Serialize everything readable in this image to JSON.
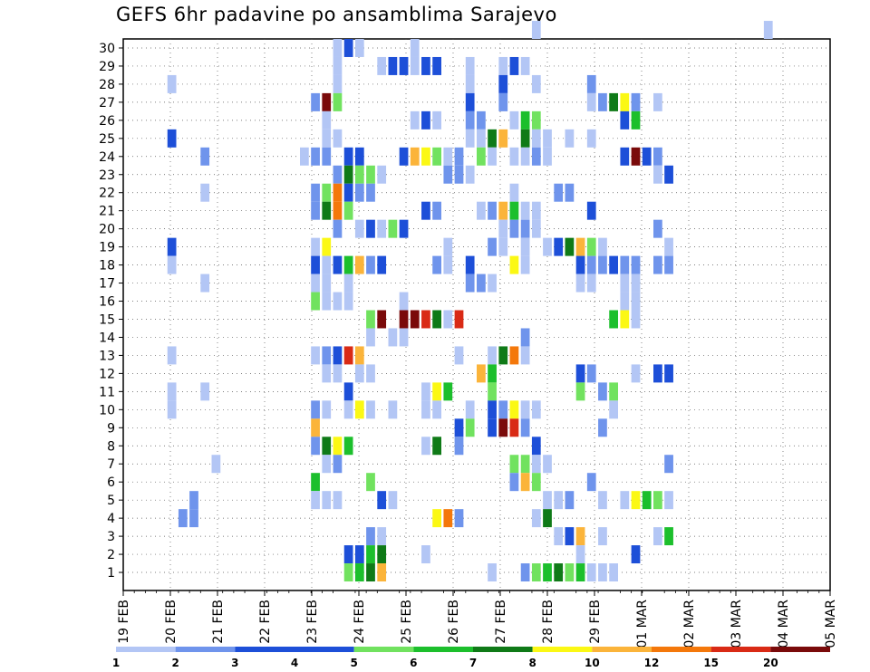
{
  "chart_data": {
    "type": "heatmap",
    "title": "GEFS 6hr padavine po ansamblima Sarajevo",
    "xlabel": "",
    "ylabel": "",
    "x_tick_labels": [
      "19 FEB",
      "20 FEB",
      "21 FEB",
      "22 FEB",
      "23 FEB",
      "24 FEB",
      "25 FEB",
      "26 FEB",
      "27 FEB",
      "28 FEB",
      "29 FEB",
      "01 MAR",
      "02 MAR",
      "03 MAR",
      "04 MAR",
      "05 MAR"
    ],
    "y_tick_labels": [
      "1",
      "2",
      "3",
      "4",
      "5",
      "6",
      "7",
      "8",
      "9",
      "10",
      "11",
      "12",
      "13",
      "14",
      "15",
      "16",
      "17",
      "18",
      "19",
      "20",
      "21",
      "22",
      "23",
      "24",
      "25",
      "26",
      "27",
      "28",
      "29",
      "30"
    ],
    "x_range_steps": [
      0,
      64
    ],
    "steps_per_day": 4,
    "grid": true,
    "legend_placement": "bottom",
    "colorbar": {
      "thresholds": [
        "1",
        "2",
        "3",
        "4",
        "5",
        "6",
        "7",
        "8",
        "10",
        "12",
        "15",
        "20"
      ],
      "colors": [
        "#b3c6f5",
        "#6f94ec",
        "#1d4fd8",
        "#1d4fd8",
        "#71e25f",
        "#1cbf2c",
        "#0f7a17",
        "#fbf814",
        "#fbb43a",
        "#f4780b",
        "#d92a15",
        "#7a0a0a"
      ]
    },
    "cells": [
      [
        30,
        37,
        0
      ],
      [
        30,
        58,
        0
      ],
      [
        29,
        19,
        0
      ],
      [
        29,
        20,
        2
      ],
      [
        29,
        21,
        0
      ],
      [
        29,
        26,
        0
      ],
      [
        28,
        19,
        0
      ],
      [
        28,
        23,
        0
      ],
      [
        28,
        24,
        2
      ],
      [
        28,
        25,
        2
      ],
      [
        28,
        26,
        0
      ],
      [
        28,
        27,
        2
      ],
      [
        28,
        28,
        2
      ],
      [
        28,
        31,
        0
      ],
      [
        28,
        34,
        0
      ],
      [
        28,
        35,
        2
      ],
      [
        28,
        36,
        0
      ],
      [
        27,
        4,
        0
      ],
      [
        27,
        19,
        0
      ],
      [
        27,
        31,
        0
      ],
      [
        27,
        34,
        2
      ],
      [
        27,
        37,
        0
      ],
      [
        27,
        42,
        1
      ],
      [
        26,
        17,
        1
      ],
      [
        26,
        18,
        11
      ],
      [
        26,
        19,
        4
      ],
      [
        26,
        31,
        2
      ],
      [
        26,
        34,
        1
      ],
      [
        26,
        42,
        0
      ],
      [
        26,
        43,
        1
      ],
      [
        26,
        44,
        6
      ],
      [
        26,
        45,
        7
      ],
      [
        26,
        46,
        1
      ],
      [
        26,
        48,
        0
      ],
      [
        25,
        18,
        0
      ],
      [
        25,
        26,
        0
      ],
      [
        25,
        27,
        2
      ],
      [
        25,
        28,
        0
      ],
      [
        25,
        31,
        1
      ],
      [
        25,
        32,
        1
      ],
      [
        25,
        35,
        0
      ],
      [
        25,
        36,
        5
      ],
      [
        25,
        37,
        4
      ],
      [
        25,
        45,
        2
      ],
      [
        25,
        46,
        5
      ],
      [
        24,
        4,
        2
      ],
      [
        24,
        18,
        0
      ],
      [
        24,
        19,
        0
      ],
      [
        24,
        31,
        0
      ],
      [
        24,
        32,
        0
      ],
      [
        24,
        33,
        6
      ],
      [
        24,
        34,
        8
      ],
      [
        24,
        36,
        6
      ],
      [
        24,
        37,
        0
      ],
      [
        24,
        38,
        0
      ],
      [
        24,
        40,
        0
      ],
      [
        24,
        42,
        0
      ],
      [
        23,
        7,
        1
      ],
      [
        23,
        16,
        0
      ],
      [
        23,
        17,
        1
      ],
      [
        23,
        18,
        1
      ],
      [
        23,
        20,
        2
      ],
      [
        23,
        21,
        2
      ],
      [
        23,
        25,
        2
      ],
      [
        23,
        26,
        8
      ],
      [
        23,
        27,
        7
      ],
      [
        23,
        28,
        4
      ],
      [
        23,
        29,
        0
      ],
      [
        23,
        30,
        1
      ],
      [
        23,
        32,
        4
      ],
      [
        23,
        33,
        0
      ],
      [
        23,
        35,
        0
      ],
      [
        23,
        36,
        0
      ],
      [
        23,
        37,
        1
      ],
      [
        23,
        38,
        0
      ],
      [
        23,
        45,
        2
      ],
      [
        23,
        46,
        11
      ],
      [
        23,
        47,
        2
      ],
      [
        23,
        48,
        1
      ],
      [
        22,
        19,
        1
      ],
      [
        22,
        20,
        6
      ],
      [
        22,
        21,
        4
      ],
      [
        22,
        22,
        4
      ],
      [
        22,
        23,
        0
      ],
      [
        22,
        29,
        1
      ],
      [
        22,
        30,
        1
      ],
      [
        22,
        31,
        0
      ],
      [
        22,
        48,
        0
      ],
      [
        22,
        49,
        2
      ],
      [
        21,
        7,
        0
      ],
      [
        21,
        17,
        1
      ],
      [
        21,
        18,
        4
      ],
      [
        21,
        19,
        9
      ],
      [
        21,
        20,
        2
      ],
      [
        21,
        21,
        1
      ],
      [
        21,
        22,
        1
      ],
      [
        21,
        35,
        0
      ],
      [
        21,
        39,
        1
      ],
      [
        21,
        40,
        1
      ],
      [
        20,
        17,
        1
      ],
      [
        20,
        18,
        6
      ],
      [
        20,
        19,
        9
      ],
      [
        20,
        20,
        4
      ],
      [
        20,
        27,
        2
      ],
      [
        20,
        28,
        1
      ],
      [
        20,
        32,
        0
      ],
      [
        20,
        33,
        1
      ],
      [
        20,
        34,
        8
      ],
      [
        20,
        35,
        5
      ],
      [
        20,
        36,
        0
      ],
      [
        20,
        37,
        0
      ],
      [
        20,
        42,
        2
      ],
      [
        19,
        19,
        1
      ],
      [
        19,
        21,
        0
      ],
      [
        19,
        22,
        2
      ],
      [
        19,
        23,
        0
      ],
      [
        19,
        24,
        4
      ],
      [
        19,
        25,
        2
      ],
      [
        19,
        34,
        0
      ],
      [
        19,
        35,
        1
      ],
      [
        19,
        36,
        1
      ],
      [
        19,
        37,
        0
      ],
      [
        19,
        48,
        1
      ],
      [
        18,
        4,
        2
      ],
      [
        18,
        17,
        0
      ],
      [
        18,
        18,
        7
      ],
      [
        18,
        29,
        0
      ],
      [
        18,
        33,
        1
      ],
      [
        18,
        34,
        0
      ],
      [
        18,
        36,
        0
      ],
      [
        18,
        38,
        0
      ],
      [
        18,
        39,
        2
      ],
      [
        18,
        40,
        6
      ],
      [
        18,
        41,
        8
      ],
      [
        18,
        42,
        4
      ],
      [
        18,
        43,
        0
      ],
      [
        18,
        49,
        0
      ],
      [
        17,
        4,
        0
      ],
      [
        17,
        17,
        2
      ],
      [
        17,
        18,
        0
      ],
      [
        17,
        19,
        2
      ],
      [
        17,
        20,
        5
      ],
      [
        17,
        21,
        8
      ],
      [
        17,
        22,
        1
      ],
      [
        17,
        23,
        2
      ],
      [
        17,
        28,
        1
      ],
      [
        17,
        29,
        0
      ],
      [
        17,
        31,
        2
      ],
      [
        17,
        35,
        7
      ],
      [
        17,
        36,
        0
      ],
      [
        17,
        41,
        2
      ],
      [
        17,
        42,
        1
      ],
      [
        17,
        43,
        1
      ],
      [
        17,
        44,
        2
      ],
      [
        17,
        45,
        1
      ],
      [
        17,
        46,
        1
      ],
      [
        17,
        48,
        1
      ],
      [
        17,
        49,
        1
      ],
      [
        16,
        7,
        0
      ],
      [
        16,
        17,
        0
      ],
      [
        16,
        18,
        0
      ],
      [
        16,
        20,
        0
      ],
      [
        16,
        31,
        1
      ],
      [
        16,
        32,
        1
      ],
      [
        16,
        33,
        0
      ],
      [
        16,
        41,
        0
      ],
      [
        16,
        42,
        0
      ],
      [
        16,
        45,
        0
      ],
      [
        16,
        46,
        0
      ],
      [
        15,
        17,
        4
      ],
      [
        15,
        18,
        0
      ],
      [
        15,
        19,
        0
      ],
      [
        15,
        20,
        0
      ],
      [
        15,
        25,
        0
      ],
      [
        15,
        45,
        0
      ],
      [
        15,
        46,
        0
      ],
      [
        14,
        22,
        4
      ],
      [
        14,
        23,
        11
      ],
      [
        14,
        25,
        11
      ],
      [
        14,
        26,
        11
      ],
      [
        14,
        27,
        10
      ],
      [
        14,
        28,
        6
      ],
      [
        14,
        29,
        0
      ],
      [
        14,
        30,
        10
      ],
      [
        14,
        44,
        5
      ],
      [
        14,
        45,
        7
      ],
      [
        14,
        46,
        0
      ],
      [
        13,
        22,
        0
      ],
      [
        13,
        24,
        0
      ],
      [
        13,
        25,
        0
      ],
      [
        13,
        36,
        1
      ],
      [
        12,
        4,
        0
      ],
      [
        12,
        17,
        0
      ],
      [
        12,
        18,
        1
      ],
      [
        12,
        19,
        2
      ],
      [
        12,
        20,
        10
      ],
      [
        12,
        21,
        8
      ],
      [
        12,
        30,
        0
      ],
      [
        12,
        33,
        0
      ],
      [
        12,
        34,
        6
      ],
      [
        12,
        35,
        9
      ],
      [
        12,
        36,
        0
      ],
      [
        11,
        18,
        0
      ],
      [
        11,
        19,
        0
      ],
      [
        11,
        21,
        0
      ],
      [
        11,
        22,
        0
      ],
      [
        11,
        32,
        8
      ],
      [
        11,
        33,
        5
      ],
      [
        11,
        41,
        2
      ],
      [
        11,
        42,
        1
      ],
      [
        11,
        46,
        0
      ],
      [
        11,
        48,
        2
      ],
      [
        11,
        49,
        2
      ],
      [
        10,
        4,
        0
      ],
      [
        10,
        7,
        0
      ],
      [
        10,
        20,
        2
      ],
      [
        10,
        27,
        0
      ],
      [
        10,
        28,
        7
      ],
      [
        10,
        29,
        5
      ],
      [
        10,
        33,
        4
      ],
      [
        10,
        41,
        4
      ],
      [
        10,
        43,
        1
      ],
      [
        10,
        44,
        4
      ],
      [
        9,
        4,
        0
      ],
      [
        9,
        17,
        1
      ],
      [
        9,
        18,
        0
      ],
      [
        9,
        20,
        0
      ],
      [
        9,
        21,
        7
      ],
      [
        9,
        22,
        0
      ],
      [
        9,
        24,
        0
      ],
      [
        9,
        27,
        0
      ],
      [
        9,
        28,
        0
      ],
      [
        9,
        31,
        0
      ],
      [
        9,
        33,
        2
      ],
      [
        9,
        34,
        1
      ],
      [
        9,
        35,
        7
      ],
      [
        9,
        36,
        0
      ],
      [
        9,
        37,
        0
      ],
      [
        9,
        44,
        0
      ],
      [
        8,
        17,
        8
      ],
      [
        8,
        30,
        2
      ],
      [
        8,
        31,
        4
      ],
      [
        8,
        33,
        2
      ],
      [
        8,
        34,
        11
      ],
      [
        8,
        35,
        10
      ],
      [
        8,
        36,
        1
      ],
      [
        8,
        43,
        1
      ],
      [
        7,
        17,
        1
      ],
      [
        7,
        18,
        6
      ],
      [
        7,
        19,
        7
      ],
      [
        7,
        20,
        5
      ],
      [
        7,
        27,
        0
      ],
      [
        7,
        28,
        6
      ],
      [
        7,
        30,
        1
      ],
      [
        7,
        37,
        2
      ],
      [
        6,
        8,
        0
      ],
      [
        6,
        18,
        0
      ],
      [
        6,
        19,
        1
      ],
      [
        6,
        35,
        4
      ],
      [
        6,
        36,
        4
      ],
      [
        6,
        37,
        0
      ],
      [
        6,
        38,
        0
      ],
      [
        6,
        49,
        1
      ],
      [
        5,
        17,
        5
      ],
      [
        5,
        22,
        4
      ],
      [
        5,
        35,
        1
      ],
      [
        5,
        36,
        8
      ],
      [
        5,
        37,
        4
      ],
      [
        5,
        42,
        1
      ],
      [
        4,
        6,
        1
      ],
      [
        4,
        17,
        0
      ],
      [
        4,
        18,
        0
      ],
      [
        4,
        19,
        0
      ],
      [
        4,
        23,
        2
      ],
      [
        4,
        24,
        0
      ],
      [
        4,
        38,
        0
      ],
      [
        4,
        39,
        0
      ],
      [
        4,
        40,
        1
      ],
      [
        4,
        43,
        0
      ],
      [
        4,
        45,
        0
      ],
      [
        4,
        46,
        7
      ],
      [
        4,
        47,
        5
      ],
      [
        4,
        48,
        4
      ],
      [
        4,
        49,
        0
      ],
      [
        3,
        5,
        1
      ],
      [
        3,
        6,
        1
      ],
      [
        3,
        28,
        7
      ],
      [
        3,
        29,
        9
      ],
      [
        3,
        30,
        1
      ],
      [
        3,
        37,
        0
      ],
      [
        3,
        38,
        6
      ],
      [
        2,
        22,
        1
      ],
      [
        2,
        23,
        0
      ],
      [
        2,
        39,
        0
      ],
      [
        2,
        40,
        2
      ],
      [
        2,
        41,
        8
      ],
      [
        2,
        43,
        0
      ],
      [
        2,
        48,
        0
      ],
      [
        2,
        49,
        5
      ],
      [
        1,
        20,
        2
      ],
      [
        1,
        21,
        2
      ],
      [
        1,
        22,
        5
      ],
      [
        1,
        23,
        6
      ],
      [
        1,
        27,
        0
      ],
      [
        1,
        41,
        0
      ],
      [
        1,
        46,
        2
      ],
      [
        0,
        20,
        4
      ],
      [
        0,
        21,
        5
      ],
      [
        0,
        22,
        6
      ],
      [
        0,
        23,
        8
      ],
      [
        0,
        33,
        0
      ],
      [
        0,
        36,
        1
      ],
      [
        0,
        37,
        4
      ],
      [
        0,
        38,
        5
      ],
      [
        0,
        39,
        6
      ],
      [
        0,
        40,
        4
      ],
      [
        0,
        41,
        5
      ],
      [
        0,
        42,
        0
      ],
      [
        0,
        43,
        0
      ],
      [
        0,
        44,
        0
      ]
    ]
  }
}
